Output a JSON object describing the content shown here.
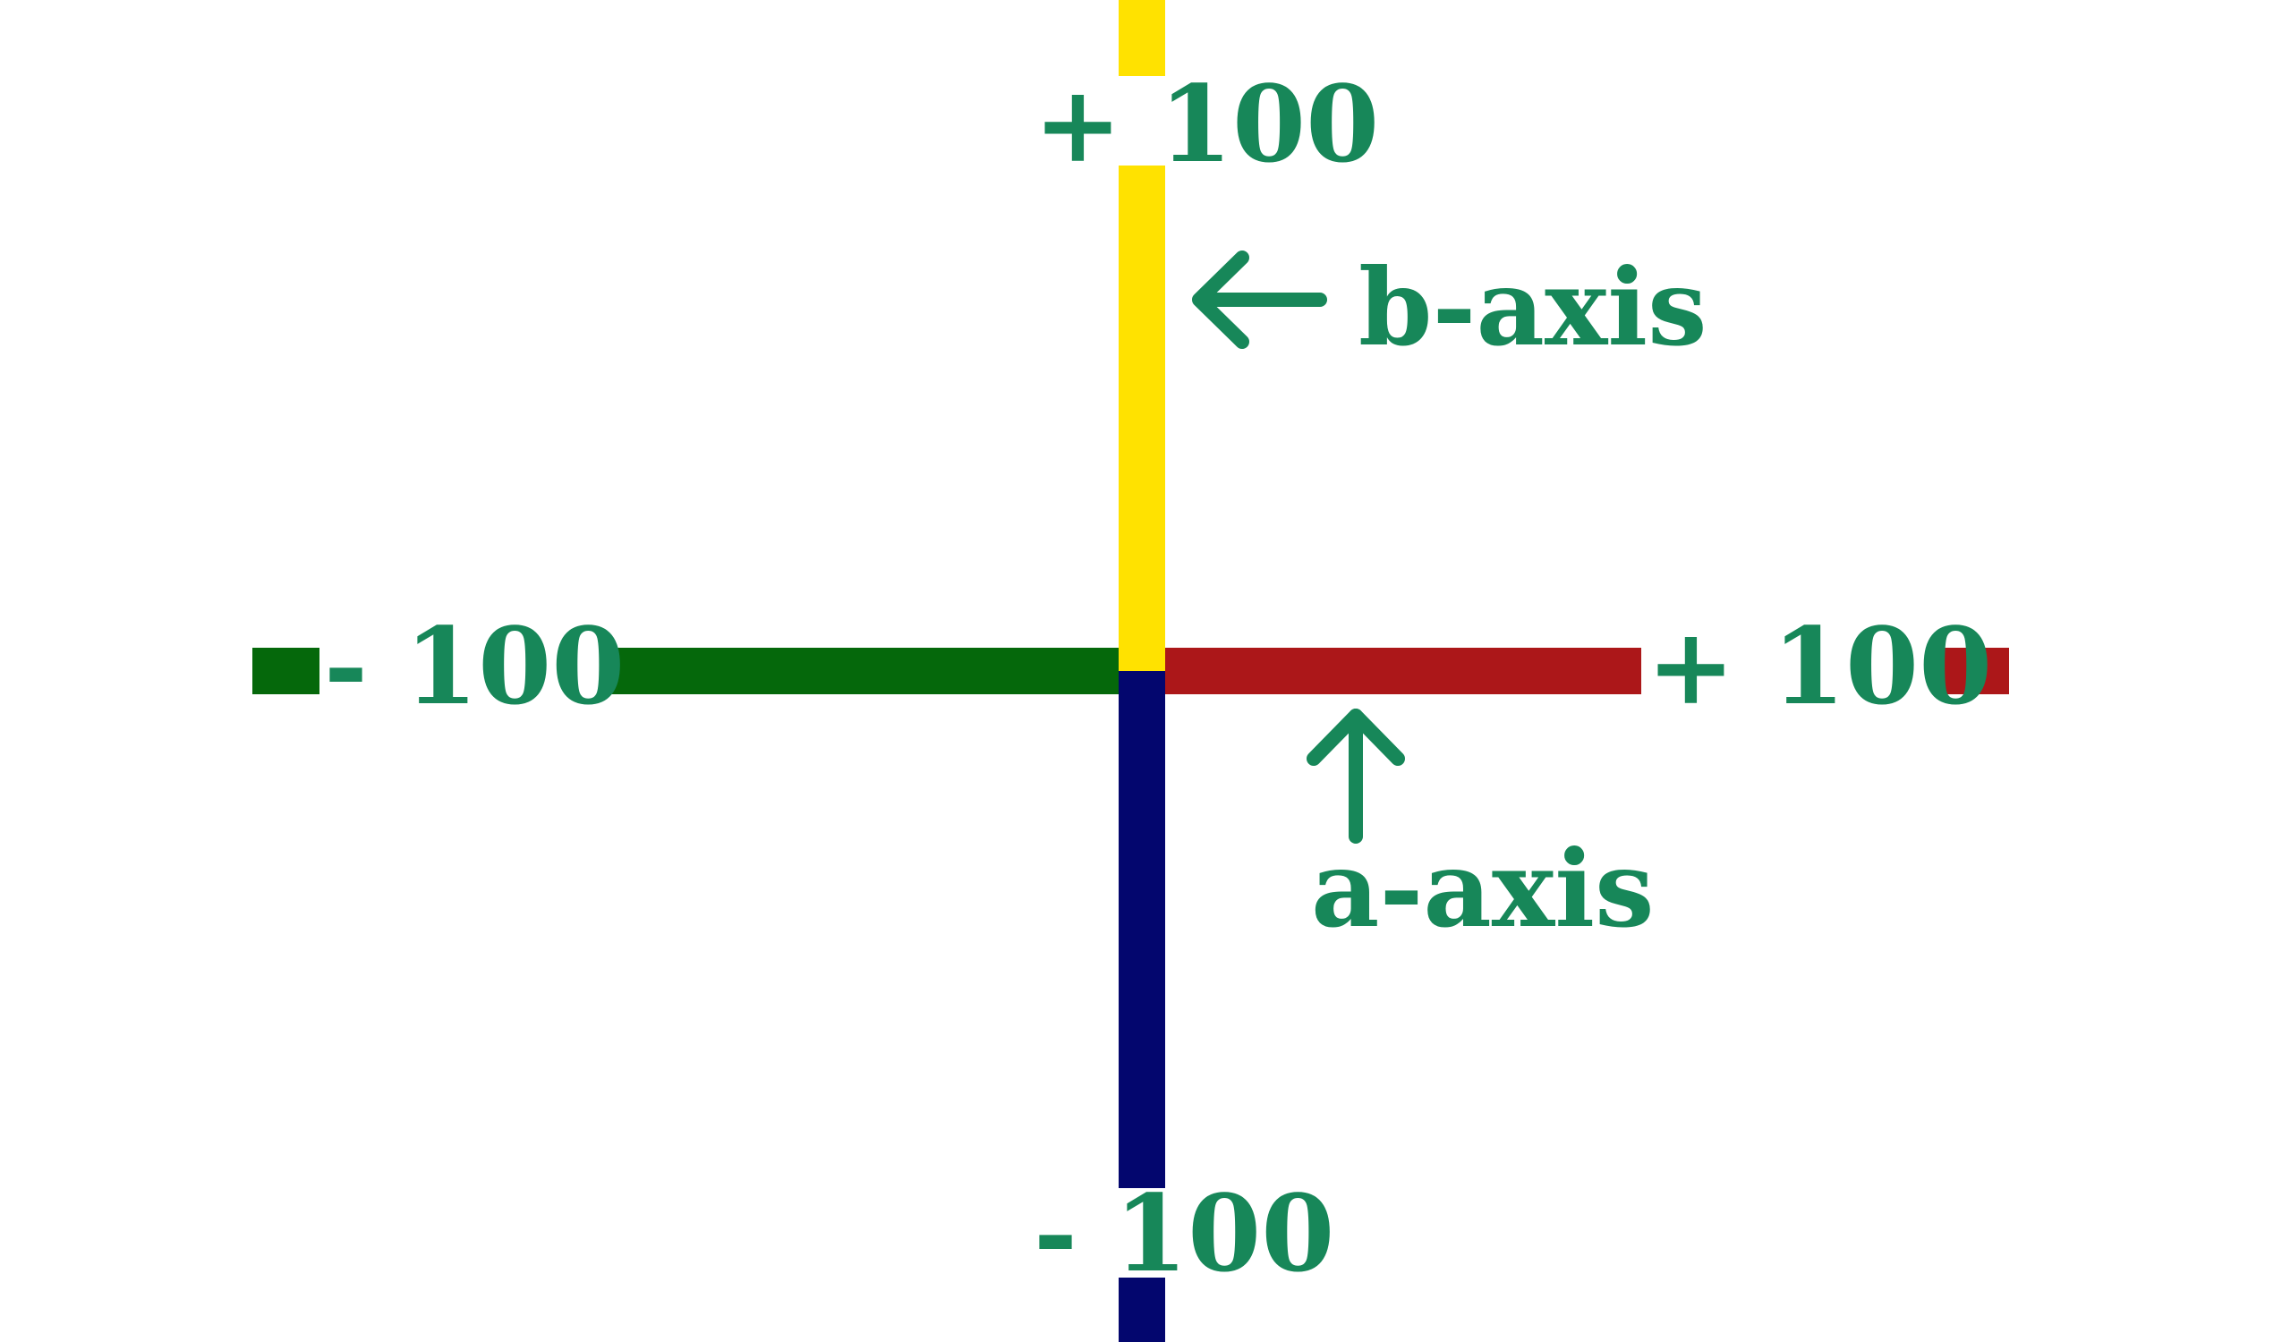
{
  "labels": {
    "b_max": "+ 100",
    "b_min": "- 100",
    "a_min": "- 100",
    "a_max": "+ 100",
    "b_axis": "b-axis",
    "a_axis": "a-axis"
  },
  "colors": {
    "label_text": "#178759",
    "positive_b": "#FFE200",
    "negative_b": "#03066E",
    "negative_a": "#05680B",
    "positive_a": "#AC1719",
    "background": "#FFFFFF"
  }
}
